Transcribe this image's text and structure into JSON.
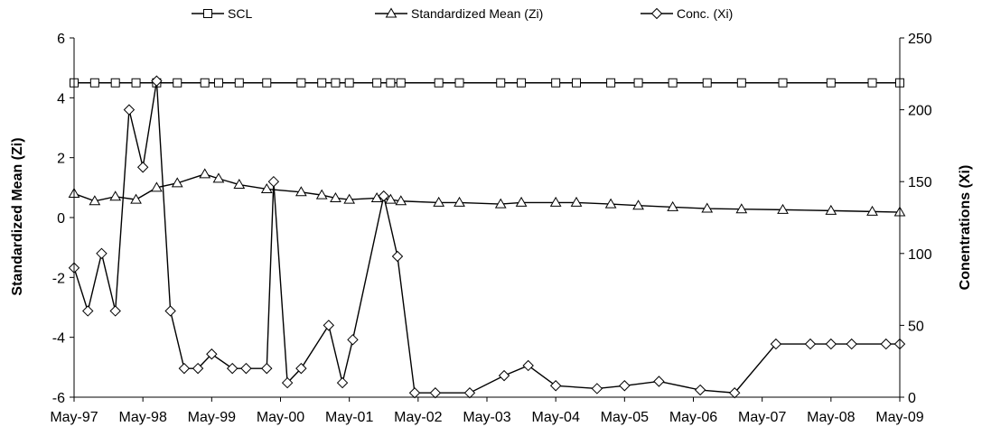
{
  "chart_data": {
    "type": "line",
    "title": "",
    "legend": {
      "placement": "top",
      "items": [
        "SCL",
        "Standardized Mean (Zi)",
        "Conc. (Xi)"
      ]
    },
    "x_axis": {
      "label": "",
      "range": [
        "1997-05",
        "2009-05"
      ],
      "tick_labels": [
        "May-97",
        "May-98",
        "May-99",
        "May-00",
        "May-01",
        "May-02",
        "May-03",
        "May-04",
        "May-05",
        "May-06",
        "May-07",
        "May-08",
        "May-09"
      ]
    },
    "y_axis_left": {
      "label": "Standardized Mean (Zi)",
      "range": [
        -6,
        6
      ],
      "tick_labels": [
        "-6",
        "-4",
        "-2",
        "0",
        "2",
        "4",
        "6"
      ]
    },
    "y_axis_right": {
      "label": "Conentrations (Xi)",
      "range": [
        0,
        250
      ],
      "tick_labels": [
        "0",
        "50",
        "100",
        "150",
        "200",
        "250"
      ]
    },
    "grid": false,
    "series": [
      {
        "name": "SCL",
        "axis": "left",
        "marker": "square",
        "x": [
          0,
          0.3,
          0.6,
          0.9,
          1.2,
          1.5,
          1.9,
          2.1,
          2.4,
          2.8,
          3.3,
          3.6,
          3.8,
          4.0,
          4.4,
          4.6,
          4.75,
          5.3,
          5.6,
          6.2,
          6.5,
          7.0,
          7.3,
          7.8,
          8.2,
          8.7,
          9.2,
          9.7,
          10.3,
          11.0,
          11.6,
          12.0
        ],
        "values": [
          4.5,
          4.5,
          4.5,
          4.5,
          4.5,
          4.5,
          4.5,
          4.5,
          4.5,
          4.5,
          4.5,
          4.5,
          4.5,
          4.5,
          4.5,
          4.5,
          4.5,
          4.5,
          4.5,
          4.5,
          4.5,
          4.5,
          4.5,
          4.5,
          4.5,
          4.5,
          4.5,
          4.5,
          4.5,
          4.5,
          4.5,
          4.5
        ]
      },
      {
        "name": "Standardized Mean (Zi)",
        "axis": "left",
        "marker": "triangle",
        "x": [
          0,
          0.3,
          0.6,
          0.9,
          1.2,
          1.5,
          1.9,
          2.1,
          2.4,
          2.8,
          3.3,
          3.6,
          3.8,
          4.0,
          4.4,
          4.6,
          4.75,
          5.3,
          5.6,
          6.2,
          6.5,
          7.0,
          7.3,
          7.8,
          8.2,
          8.7,
          9.2,
          9.7,
          10.3,
          11.0,
          11.6,
          12.0
        ],
        "values": [
          0.8,
          0.55,
          0.7,
          0.6,
          1.0,
          1.15,
          1.45,
          1.3,
          1.1,
          0.95,
          0.85,
          0.75,
          0.65,
          0.6,
          0.65,
          0.6,
          0.55,
          0.5,
          0.5,
          0.45,
          0.5,
          0.5,
          0.5,
          0.45,
          0.4,
          0.35,
          0.3,
          0.28,
          0.26,
          0.23,
          0.2,
          0.18
        ]
      },
      {
        "name": "Conc. (Xi)",
        "axis": "right",
        "marker": "diamond",
        "x": [
          0,
          0.2,
          0.4,
          0.6,
          0.8,
          1.0,
          1.2,
          1.4,
          1.6,
          1.8,
          2.0,
          2.3,
          2.5,
          2.8,
          2.9,
          3.1,
          3.3,
          3.7,
          3.9,
          4.05,
          4.5,
          4.7,
          4.95,
          5.25,
          5.75,
          6.25,
          6.6,
          7.0,
          7.6,
          8.0,
          8.5,
          9.1,
          9.6,
          10.2,
          10.7,
          11.0,
          11.3,
          11.8,
          12.0
        ],
        "values": [
          90,
          60,
          100,
          60,
          200,
          160,
          220,
          60,
          20,
          20,
          30,
          20,
          20,
          20,
          150,
          10,
          20,
          50,
          10,
          40,
          140,
          98,
          3,
          3,
          3,
          15,
          22,
          8,
          6,
          8,
          11,
          5,
          3,
          37,
          37,
          37,
          37,
          37,
          37
        ]
      }
    ]
  }
}
